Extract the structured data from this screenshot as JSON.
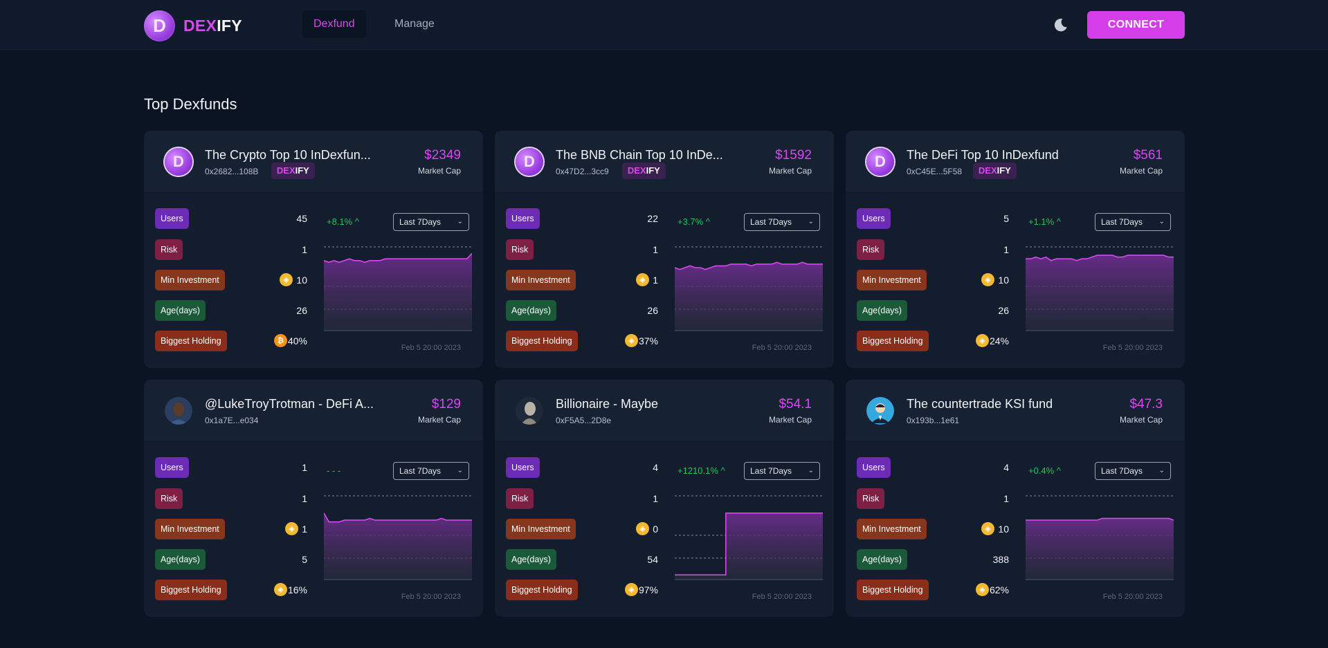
{
  "header": {
    "logo_letter": "D",
    "logo_dex": "DEX",
    "logo_ify": "IFY",
    "nav": [
      {
        "label": "Dexfund",
        "active": true
      },
      {
        "label": "Manage",
        "active": false
      }
    ],
    "theme_icon": "moon-icon",
    "connect_label": "CONNECT"
  },
  "section_title": "Top Dexfunds",
  "labels": {
    "market_cap": "Market Cap",
    "users": "Users",
    "risk": "Risk",
    "min_investment": "Min Investment",
    "age": "Age(days)",
    "biggest_holding": "Biggest Holding",
    "period": "Last 7Days",
    "badge_dex": "DEX",
    "badge_ify": "IFY"
  },
  "colors": {
    "accent": "#d848f0",
    "positive": "#22c55e",
    "chart_line": "#d848f0",
    "chart_fill": "#6a2c8c"
  },
  "funds": [
    {
      "name": "The Crypto Top 10 InDexfun...",
      "address": "0x2682...108B",
      "avatar": "dexify-logo",
      "badge": true,
      "market_cap": "$2349",
      "users": "45",
      "risk": "1",
      "min_investment": "10",
      "min_coin": "bnb",
      "age": "26",
      "biggest_holding": "40%",
      "holding_coin": "btc",
      "change": "+8.1% ^",
      "date": "Feb 5 20:00 2023",
      "series": [
        40,
        39,
        40,
        39,
        40,
        41,
        40,
        40,
        39,
        40,
        40,
        40,
        41,
        41,
        41,
        41,
        41,
        41,
        41,
        41,
        41,
        41,
        41,
        41,
        41,
        41,
        41,
        41,
        41,
        44
      ]
    },
    {
      "name": "The BNB Chain Top 10 InDe...",
      "address": "0x47D2...3cc9",
      "avatar": "dexify-logo",
      "badge": true,
      "market_cap": "$1592",
      "users": "22",
      "risk": "1",
      "min_investment": "1",
      "min_coin": "bnb",
      "age": "26",
      "biggest_holding": "37%",
      "holding_coin": "bnb",
      "change": "+3.7% ^",
      "date": "Feb 5 20:00 2023",
      "series": [
        36,
        35,
        36,
        37,
        36,
        36,
        35,
        36,
        37,
        37,
        37,
        38,
        38,
        38,
        38,
        37,
        38,
        38,
        38,
        38,
        39,
        38,
        38,
        38,
        38,
        39,
        38,
        38,
        38,
        38
      ]
    },
    {
      "name": "The DeFi Top 10 InDexfund",
      "address": "0xC45E...5F58",
      "avatar": "dexify-logo",
      "badge": true,
      "market_cap": "$561",
      "users": "5",
      "risk": "1",
      "min_investment": "10",
      "min_coin": "bnb",
      "age": "26",
      "biggest_holding": "24%",
      "holding_coin": "bnb",
      "change": "+1.1% ^",
      "date": "Feb 5 20:00 2023",
      "series": [
        41,
        41,
        42,
        41,
        42,
        40,
        41,
        41,
        41,
        41,
        40,
        41,
        41,
        42,
        43,
        43,
        43,
        43,
        42,
        42,
        43,
        43,
        43,
        43,
        43,
        43,
        43,
        43,
        42,
        42
      ]
    },
    {
      "name": "@LukeTroyTrotman - DeFi A...",
      "address": "0x1a7E...e034",
      "avatar": "portrait",
      "badge": false,
      "market_cap": "$129",
      "users": "1",
      "risk": "1",
      "min_investment": "1",
      "min_coin": "bnb",
      "age": "5",
      "biggest_holding": "16%",
      "holding_coin": "bnb",
      "change": "- - -",
      "date": "Feb 5 20:00 2023",
      "series": [
        38,
        33,
        33,
        33,
        34,
        34,
        34,
        34,
        34,
        35,
        34,
        34,
        34,
        34,
        34,
        34,
        34,
        34,
        34,
        34,
        34,
        34,
        34,
        35,
        34,
        34,
        34,
        34,
        34,
        34
      ]
    },
    {
      "name": "Billionaire - Maybe",
      "address": "0xF5A5...2D8e",
      "avatar": "statue",
      "badge": false,
      "market_cap": "$54.1",
      "users": "4",
      "risk": "1",
      "min_investment": "0",
      "min_coin": "bnb",
      "age": "54",
      "biggest_holding": "97%",
      "holding_coin": "bnb",
      "change": "+1210.1% ^",
      "date": "Feb 5 20:00 2023",
      "series": [
        3,
        3,
        3,
        3,
        3,
        3,
        3,
        3,
        3,
        3,
        38,
        38,
        38,
        38,
        38,
        38,
        38,
        38,
        38,
        38,
        38,
        38,
        38,
        38,
        38,
        38,
        38,
        38,
        38,
        38
      ]
    },
    {
      "name": "The countertrade KSI fund",
      "address": "0x193b...1e61",
      "avatar": "agent",
      "badge": false,
      "market_cap": "$47.3",
      "users": "4",
      "risk": "1",
      "min_investment": "10",
      "min_coin": "bnb",
      "age": "388",
      "biggest_holding": "62%",
      "holding_coin": "bnb",
      "change": "+0.4% ^",
      "date": "Feb 5 20:00 2023",
      "series": [
        34,
        34,
        34,
        34,
        34,
        34,
        34,
        34,
        34,
        34,
        34,
        34,
        34,
        34,
        34,
        35,
        35,
        35,
        35,
        35,
        35,
        35,
        35,
        35,
        35,
        35,
        35,
        35,
        35,
        34
      ]
    }
  ]
}
